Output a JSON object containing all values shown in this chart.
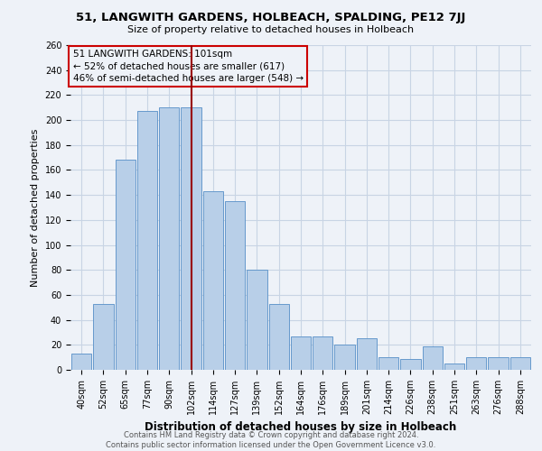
{
  "title": "51, LANGWITH GARDENS, HOLBEACH, SPALDING, PE12 7JJ",
  "subtitle": "Size of property relative to detached houses in Holbeach",
  "xlabel": "Distribution of detached houses by size in Holbeach",
  "ylabel": "Number of detached properties",
  "footer_line1": "Contains HM Land Registry data © Crown copyright and database right 2024.",
  "footer_line2": "Contains public sector information licensed under the Open Government Licence v3.0.",
  "annotation_line1": "51 LANGWITH GARDENS: 101sqm",
  "annotation_line2": "← 52% of detached houses are smaller (617)",
  "annotation_line3": "46% of semi-detached houses are larger (548) →",
  "bar_labels": [
    "40sqm",
    "52sqm",
    "65sqm",
    "77sqm",
    "90sqm",
    "102sqm",
    "114sqm",
    "127sqm",
    "139sqm",
    "152sqm",
    "164sqm",
    "176sqm",
    "189sqm",
    "201sqm",
    "214sqm",
    "226sqm",
    "238sqm",
    "251sqm",
    "263sqm",
    "276sqm",
    "288sqm"
  ],
  "bar_values": [
    13,
    53,
    168,
    207,
    210,
    210,
    143,
    135,
    80,
    53,
    27,
    27,
    20,
    25,
    10,
    9,
    19,
    5,
    10,
    10,
    10
  ],
  "bar_color": "#b8cfe8",
  "bar_edge_color": "#6699cc",
  "vline_color": "#990000",
  "vline_x_index": 5,
  "annotation_box_edge": "#cc0000",
  "grid_color": "#c8d4e4",
  "background_color": "#eef2f8",
  "ylim": [
    0,
    260
  ],
  "yticks": [
    0,
    20,
    40,
    60,
    80,
    100,
    120,
    140,
    160,
    180,
    200,
    220,
    240,
    260
  ],
  "title_fontsize": 9.5,
  "subtitle_fontsize": 8,
  "ylabel_fontsize": 8,
  "xlabel_fontsize": 8.5,
  "tick_fontsize": 7,
  "footer_fontsize": 6,
  "annotation_fontsize": 7.5
}
